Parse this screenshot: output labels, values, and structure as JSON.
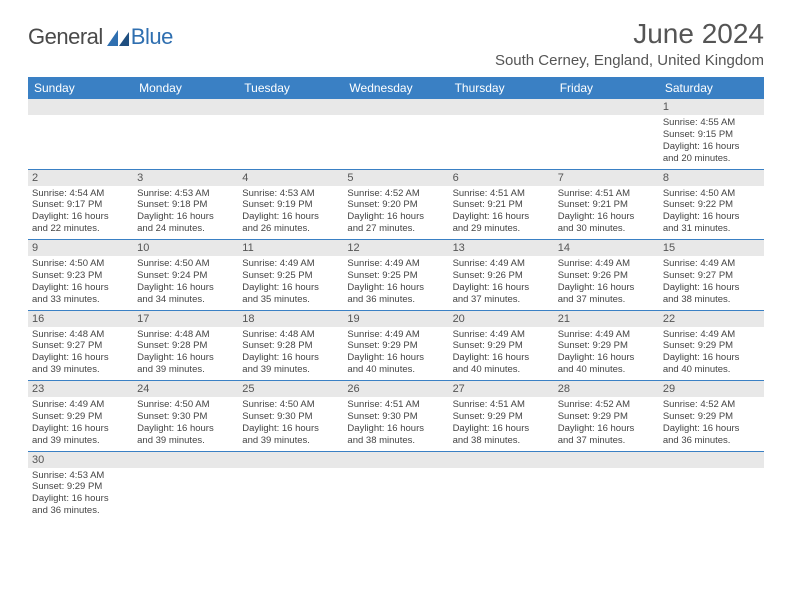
{
  "logo": {
    "text1": "General",
    "text2": "Blue"
  },
  "title": "June 2024",
  "location": "South Cerney, England, United Kingdom",
  "colors": {
    "header_bar": "#3a80c4",
    "daynum_bg": "#e8e8e8",
    "text": "#555555",
    "logo_gray": "#4a4a4a",
    "logo_blue": "#2f6fb0"
  },
  "weekdays": [
    "Sunday",
    "Monday",
    "Tuesday",
    "Wednesday",
    "Thursday",
    "Friday",
    "Saturday"
  ],
  "weeks": [
    [
      {
        "num": "",
        "lines": []
      },
      {
        "num": "",
        "lines": []
      },
      {
        "num": "",
        "lines": []
      },
      {
        "num": "",
        "lines": []
      },
      {
        "num": "",
        "lines": []
      },
      {
        "num": "",
        "lines": []
      },
      {
        "num": "1",
        "lines": [
          "Sunrise: 4:55 AM",
          "Sunset: 9:15 PM",
          "Daylight: 16 hours",
          "and 20 minutes."
        ]
      }
    ],
    [
      {
        "num": "2",
        "lines": [
          "Sunrise: 4:54 AM",
          "Sunset: 9:17 PM",
          "Daylight: 16 hours",
          "and 22 minutes."
        ]
      },
      {
        "num": "3",
        "lines": [
          "Sunrise: 4:53 AM",
          "Sunset: 9:18 PM",
          "Daylight: 16 hours",
          "and 24 minutes."
        ]
      },
      {
        "num": "4",
        "lines": [
          "Sunrise: 4:53 AM",
          "Sunset: 9:19 PM",
          "Daylight: 16 hours",
          "and 26 minutes."
        ]
      },
      {
        "num": "5",
        "lines": [
          "Sunrise: 4:52 AM",
          "Sunset: 9:20 PM",
          "Daylight: 16 hours",
          "and 27 minutes."
        ]
      },
      {
        "num": "6",
        "lines": [
          "Sunrise: 4:51 AM",
          "Sunset: 9:21 PM",
          "Daylight: 16 hours",
          "and 29 minutes."
        ]
      },
      {
        "num": "7",
        "lines": [
          "Sunrise: 4:51 AM",
          "Sunset: 9:21 PM",
          "Daylight: 16 hours",
          "and 30 minutes."
        ]
      },
      {
        "num": "8",
        "lines": [
          "Sunrise: 4:50 AM",
          "Sunset: 9:22 PM",
          "Daylight: 16 hours",
          "and 31 minutes."
        ]
      }
    ],
    [
      {
        "num": "9",
        "lines": [
          "Sunrise: 4:50 AM",
          "Sunset: 9:23 PM",
          "Daylight: 16 hours",
          "and 33 minutes."
        ]
      },
      {
        "num": "10",
        "lines": [
          "Sunrise: 4:50 AM",
          "Sunset: 9:24 PM",
          "Daylight: 16 hours",
          "and 34 minutes."
        ]
      },
      {
        "num": "11",
        "lines": [
          "Sunrise: 4:49 AM",
          "Sunset: 9:25 PM",
          "Daylight: 16 hours",
          "and 35 minutes."
        ]
      },
      {
        "num": "12",
        "lines": [
          "Sunrise: 4:49 AM",
          "Sunset: 9:25 PM",
          "Daylight: 16 hours",
          "and 36 minutes."
        ]
      },
      {
        "num": "13",
        "lines": [
          "Sunrise: 4:49 AM",
          "Sunset: 9:26 PM",
          "Daylight: 16 hours",
          "and 37 minutes."
        ]
      },
      {
        "num": "14",
        "lines": [
          "Sunrise: 4:49 AM",
          "Sunset: 9:26 PM",
          "Daylight: 16 hours",
          "and 37 minutes."
        ]
      },
      {
        "num": "15",
        "lines": [
          "Sunrise: 4:49 AM",
          "Sunset: 9:27 PM",
          "Daylight: 16 hours",
          "and 38 minutes."
        ]
      }
    ],
    [
      {
        "num": "16",
        "lines": [
          "Sunrise: 4:48 AM",
          "Sunset: 9:27 PM",
          "Daylight: 16 hours",
          "and 39 minutes."
        ]
      },
      {
        "num": "17",
        "lines": [
          "Sunrise: 4:48 AM",
          "Sunset: 9:28 PM",
          "Daylight: 16 hours",
          "and 39 minutes."
        ]
      },
      {
        "num": "18",
        "lines": [
          "Sunrise: 4:48 AM",
          "Sunset: 9:28 PM",
          "Daylight: 16 hours",
          "and 39 minutes."
        ]
      },
      {
        "num": "19",
        "lines": [
          "Sunrise: 4:49 AM",
          "Sunset: 9:29 PM",
          "Daylight: 16 hours",
          "and 40 minutes."
        ]
      },
      {
        "num": "20",
        "lines": [
          "Sunrise: 4:49 AM",
          "Sunset: 9:29 PM",
          "Daylight: 16 hours",
          "and 40 minutes."
        ]
      },
      {
        "num": "21",
        "lines": [
          "Sunrise: 4:49 AM",
          "Sunset: 9:29 PM",
          "Daylight: 16 hours",
          "and 40 minutes."
        ]
      },
      {
        "num": "22",
        "lines": [
          "Sunrise: 4:49 AM",
          "Sunset: 9:29 PM",
          "Daylight: 16 hours",
          "and 40 minutes."
        ]
      }
    ],
    [
      {
        "num": "23",
        "lines": [
          "Sunrise: 4:49 AM",
          "Sunset: 9:29 PM",
          "Daylight: 16 hours",
          "and 39 minutes."
        ]
      },
      {
        "num": "24",
        "lines": [
          "Sunrise: 4:50 AM",
          "Sunset: 9:30 PM",
          "Daylight: 16 hours",
          "and 39 minutes."
        ]
      },
      {
        "num": "25",
        "lines": [
          "Sunrise: 4:50 AM",
          "Sunset: 9:30 PM",
          "Daylight: 16 hours",
          "and 39 minutes."
        ]
      },
      {
        "num": "26",
        "lines": [
          "Sunrise: 4:51 AM",
          "Sunset: 9:30 PM",
          "Daylight: 16 hours",
          "and 38 minutes."
        ]
      },
      {
        "num": "27",
        "lines": [
          "Sunrise: 4:51 AM",
          "Sunset: 9:29 PM",
          "Daylight: 16 hours",
          "and 38 minutes."
        ]
      },
      {
        "num": "28",
        "lines": [
          "Sunrise: 4:52 AM",
          "Sunset: 9:29 PM",
          "Daylight: 16 hours",
          "and 37 minutes."
        ]
      },
      {
        "num": "29",
        "lines": [
          "Sunrise: 4:52 AM",
          "Sunset: 9:29 PM",
          "Daylight: 16 hours",
          "and 36 minutes."
        ]
      }
    ],
    [
      {
        "num": "30",
        "lines": [
          "Sunrise: 4:53 AM",
          "Sunset: 9:29 PM",
          "Daylight: 16 hours",
          "and 36 minutes."
        ]
      },
      {
        "num": "",
        "lines": []
      },
      {
        "num": "",
        "lines": []
      },
      {
        "num": "",
        "lines": []
      },
      {
        "num": "",
        "lines": []
      },
      {
        "num": "",
        "lines": []
      },
      {
        "num": "",
        "lines": []
      }
    ]
  ]
}
